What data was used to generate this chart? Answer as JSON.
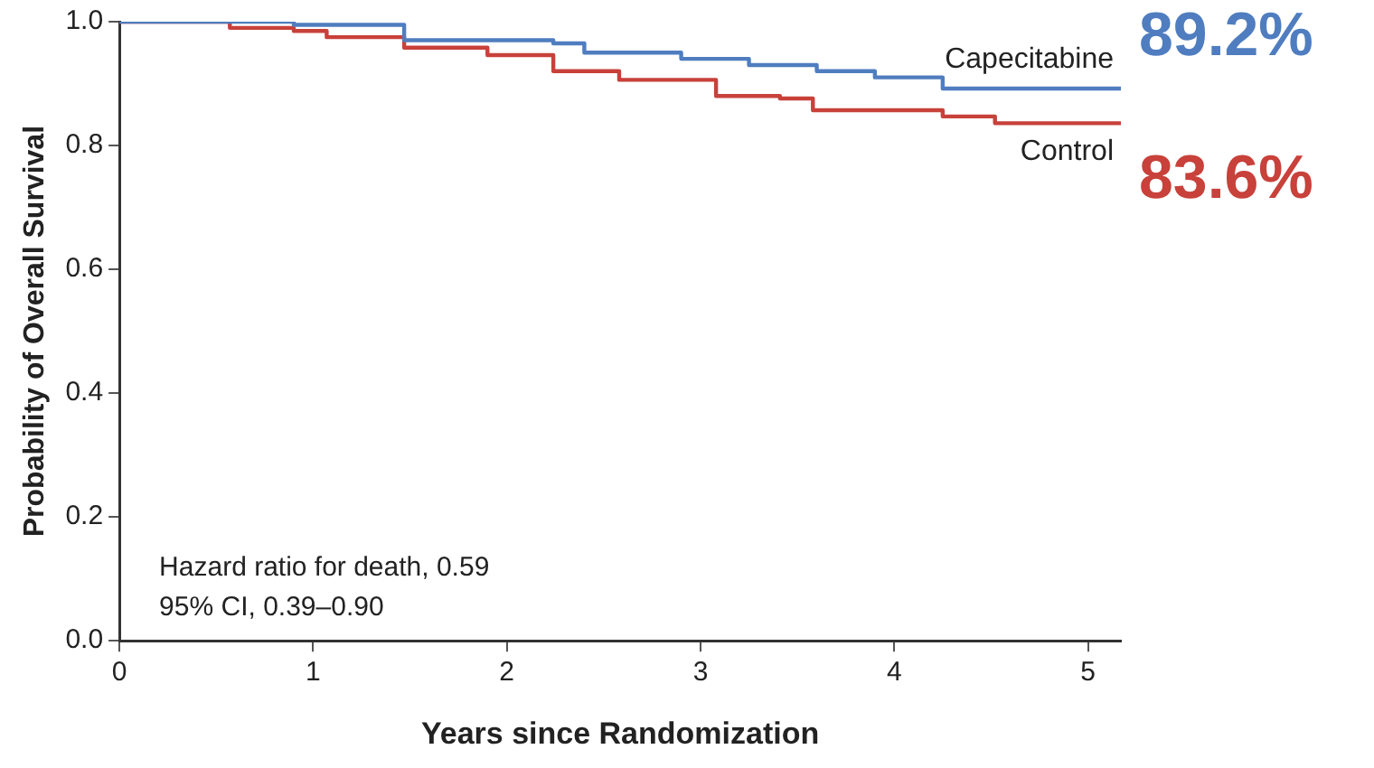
{
  "chart_data": {
    "type": "step",
    "xlabel": "Years since Randomization",
    "ylabel": "Probability of Overall Survival",
    "xlim": [
      0,
      5.17
    ],
    "xticks": [
      0,
      1,
      2,
      3,
      4,
      5
    ],
    "ylim": [
      0,
      1
    ],
    "yticks": [
      {
        "value": 0,
        "label": "0.0"
      },
      {
        "value": 0.2,
        "label": "0.2"
      },
      {
        "value": 0.4,
        "label": "0.4"
      },
      {
        "value": 0.6,
        "label": "0.6"
      },
      {
        "value": 0.8,
        "label": "0.8"
      },
      {
        "value": 1,
        "label": "1.0"
      }
    ],
    "grid": false,
    "series": [
      {
        "name": "Capecitabine",
        "color": "#4f7dbf",
        "x": [
          0,
          0.9,
          1.47,
          2.24,
          2.4,
          2.9,
          3.25,
          3.6,
          3.9,
          4.25,
          5.17
        ],
        "values": [
          1,
          0.995,
          0.97,
          0.965,
          0.95,
          0.94,
          0.93,
          0.92,
          0.91,
          0.892,
          0.892
        ]
      },
      {
        "name": "Control",
        "color": "#c8413a",
        "x": [
          0,
          0.37,
          0.57,
          0.9,
          1.07,
          1.47,
          1.9,
          2.24,
          2.58,
          3.08,
          3.41,
          3.58,
          4.25,
          4.52,
          5.17
        ],
        "values": [
          1,
          1,
          0.99,
          0.985,
          0.975,
          0.958,
          0.946,
          0.92,
          0.906,
          0.88,
          0.876,
          0.857,
          0.847,
          0.836,
          0.836
        ]
      }
    ],
    "annotations": [
      "Hazard ratio for death, 0.59",
      "95% CI, 0.39–0.90",
      {
        "text": "89.2%",
        "x": 5.17,
        "y": 0.892
      },
      {
        "text": "83.6%",
        "x": 5.17,
        "y": 0.836
      }
    ]
  }
}
